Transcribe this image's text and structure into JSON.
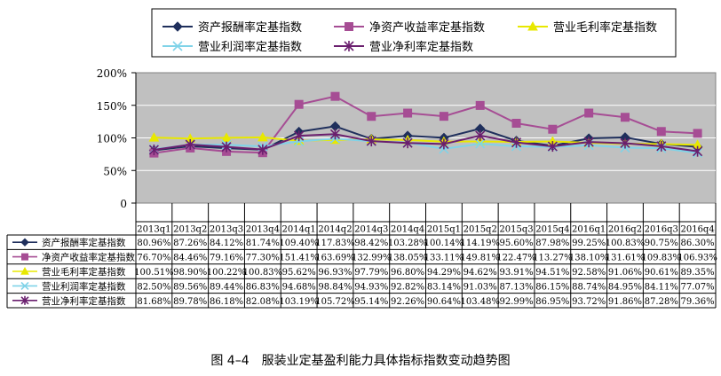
{
  "chart_data": {
    "type": "line",
    "title": "",
    "caption": "图 4–4　服装业定基盈利能力具体指标指数变动趋势图",
    "categories": [
      "2013q1",
      "2013q2",
      "2013q3",
      "2013q4",
      "2014q1",
      "2014q2",
      "2014q3",
      "2014q4",
      "2015q1",
      "2015q2",
      "2015q3",
      "2015q4",
      "2016q1",
      "2016q2",
      "2016q3",
      "2016q4"
    ],
    "y_ticks": [
      "0",
      "50%",
      "100%",
      "150%",
      "200%"
    ],
    "ylim": [
      0,
      200
    ],
    "grid": true,
    "legend_position": "top",
    "series": [
      {
        "name": "资产报酬率定基指数",
        "color": "#1f2f5c",
        "marker": "diamond",
        "values": [
          80.96,
          87.26,
          84.12,
          81.74,
          109.4,
          117.83,
          98.42,
          103.28,
          100.14,
          114.19,
          95.6,
          87.98,
          99.25,
          100.83,
          90.75,
          86.3
        ],
        "labels": [
          "80.96%",
          "87.26%",
          "84.12%",
          "81.74%",
          "109.40%",
          "117.83%",
          "98.42%",
          "103.28%",
          "100.14%",
          "114.19%",
          "95.60%",
          "87.98%",
          "99.25%",
          "100.83%",
          "90.75%",
          "86.30%"
        ]
      },
      {
        "name": "净资产收益率定基指数",
        "color": "#a64d94",
        "marker": "square",
        "values": [
          76.7,
          84.46,
          79.16,
          77.3,
          151.41,
          163.69,
          132.99,
          138.05,
          133.11,
          149.81,
          122.47,
          113.27,
          138.1,
          131.61,
          109.83,
          106.93
        ],
        "labels": [
          "76.70%",
          "84.46%",
          "79.16%",
          "77.30%",
          "151.41%",
          "163.69%",
          "132.99%",
          "138.05%",
          "133.11%",
          "149.81%",
          "122.47%",
          "113.27%",
          "138.10%",
          "131.61%",
          "109.83%",
          "106.93%"
        ]
      },
      {
        "name": "营业毛利率定基指数",
        "color": "#e8e800",
        "marker": "triangle",
        "values": [
          100.51,
          98.9,
          100.22,
          100.83,
          95.62,
          96.93,
          97.79,
          96.8,
          94.29,
          94.62,
          93.91,
          94.51,
          92.58,
          91.06,
          90.61,
          89.35
        ],
        "labels": [
          "100.51%",
          "98.90%",
          "100.22%",
          "100.83%",
          "95.62%",
          "96.93%",
          "97.79%",
          "96.80%",
          "94.29%",
          "94.62%",
          "93.91%",
          "94.51%",
          "92.58%",
          "91.06%",
          "90.61%",
          "89.35%"
        ]
      },
      {
        "name": "营业利润率定基指数",
        "color": "#7fd3e8",
        "marker": "x",
        "values": [
          82.5,
          89.56,
          89.44,
          86.83,
          94.68,
          98.84,
          94.93,
          92.82,
          83.14,
          91.03,
          87.13,
          86.15,
          88.74,
          84.95,
          84.11,
          77.07
        ],
        "labels": [
          "82.50%",
          "89.56%",
          "89.44%",
          "86.83%",
          "94.68%",
          "98.84%",
          "94.93%",
          "92.82%",
          "83.14%",
          "91.03%",
          "87.13%",
          "86.15%",
          "88.74%",
          "84.95%",
          "84.11%",
          "77.07%"
        ]
      },
      {
        "name": "营业净利率定基指数",
        "color": "#6a1f6e",
        "marker": "star",
        "values": [
          81.68,
          89.78,
          86.18,
          82.08,
          103.19,
          105.72,
          95.14,
          92.26,
          90.64,
          103.48,
          92.99,
          86.95,
          93.72,
          91.86,
          87.28,
          79.36
        ],
        "labels": [
          "81.68%",
          "89.78%",
          "86.18%",
          "82.08%",
          "103.19%",
          "105.72%",
          "95.14%",
          "92.26%",
          "90.64%",
          "103.48%",
          "92.99%",
          "86.95%",
          "93.72%",
          "91.86%",
          "87.28%",
          "79.36%"
        ]
      }
    ]
  }
}
